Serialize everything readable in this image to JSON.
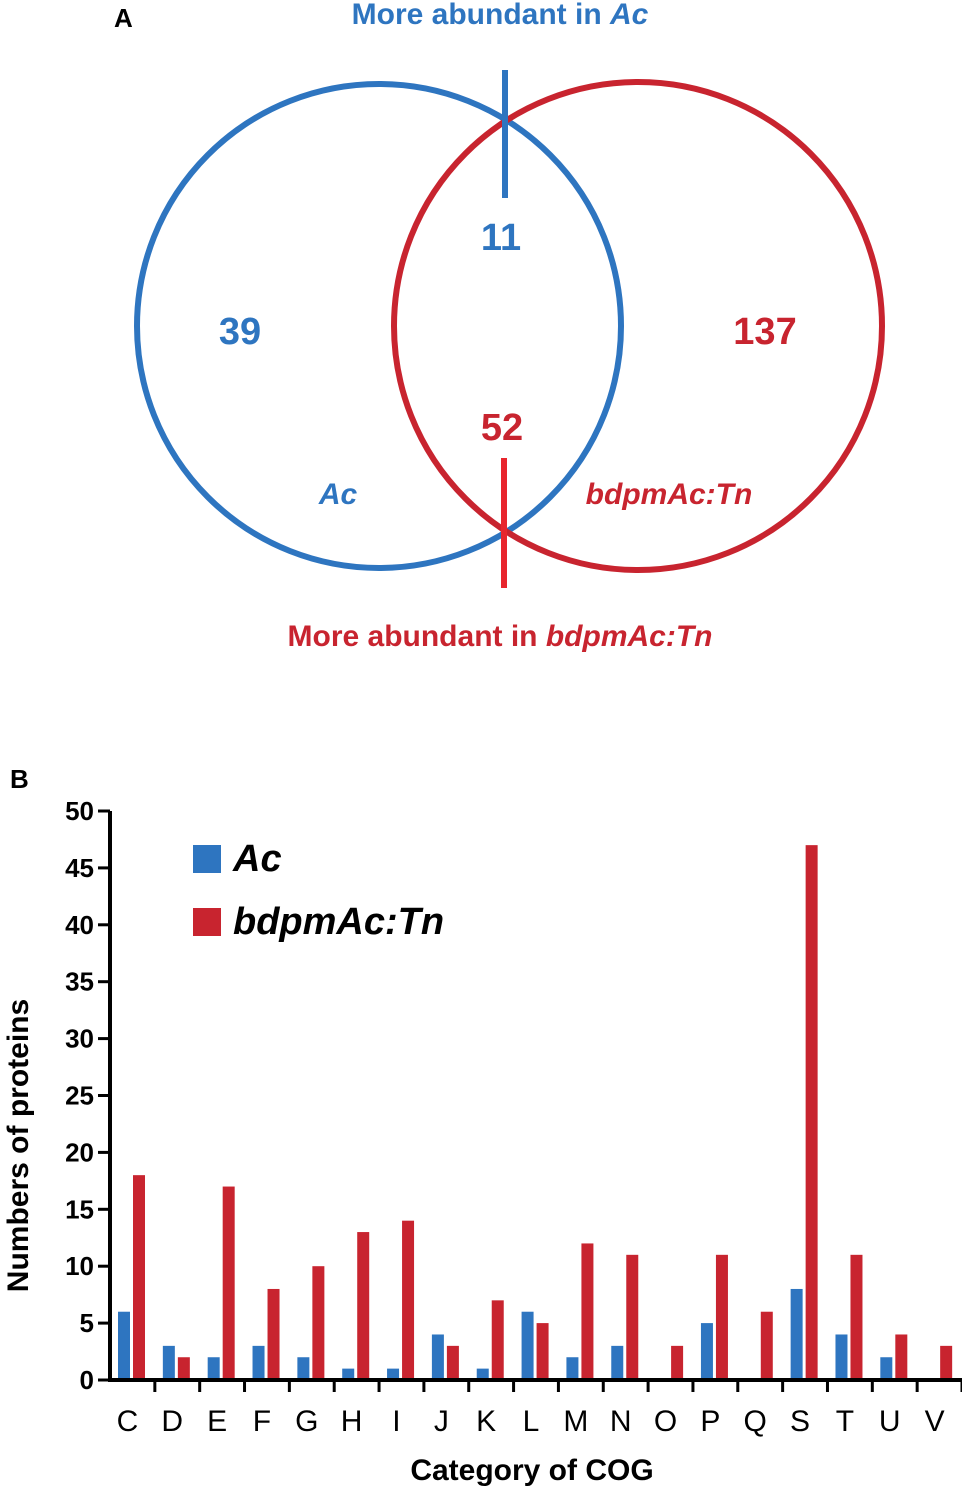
{
  "panel_a": {
    "label": "A",
    "top_title_prefix": "More abundant in ",
    "top_title_italic": "Ac",
    "bottom_title_prefix": "More abundant in ",
    "bottom_title_italic": "bdpmAc:Tn",
    "counts": {
      "ac_only": "39",
      "intersection_top": "11",
      "intersection_bottom": "52",
      "tn_only": "137"
    },
    "set_labels": {
      "ac": "Ac",
      "tn": "bdpmAc:Tn"
    },
    "colors": {
      "ac": "#2e75c0",
      "tn": "#c8242f",
      "tn_marker": "#e8252d"
    }
  },
  "panel_b": {
    "label": "B",
    "chart_data": {
      "type": "bar",
      "categories": [
        "C",
        "D",
        "E",
        "F",
        "G",
        "H",
        "I",
        "J",
        "K",
        "L",
        "M",
        "N",
        "O",
        "P",
        "Q",
        "S",
        "T",
        "U",
        "V"
      ],
      "series": [
        {
          "name": "Ac",
          "color": "#2e75c0",
          "values": [
            6,
            3,
            2,
            3,
            2,
            1,
            1,
            4,
            1,
            6,
            2,
            3,
            0,
            5,
            0,
            8,
            4,
            2,
            0
          ]
        },
        {
          "name": "bdpmAc:Tn",
          "color": "#c8242f",
          "values": [
            18,
            2,
            17,
            8,
            10,
            13,
            14,
            3,
            7,
            5,
            12,
            11,
            3,
            11,
            6,
            47,
            11,
            4,
            3
          ]
        }
      ],
      "xlabel": "Category of COG",
      "ylabel": "Numbers of proteins",
      "ylim": [
        0,
        50
      ],
      "yticks": [
        0,
        5,
        10,
        15,
        20,
        25,
        30,
        35,
        40,
        45,
        50
      ],
      "legend": "top-left",
      "grid": false
    }
  }
}
